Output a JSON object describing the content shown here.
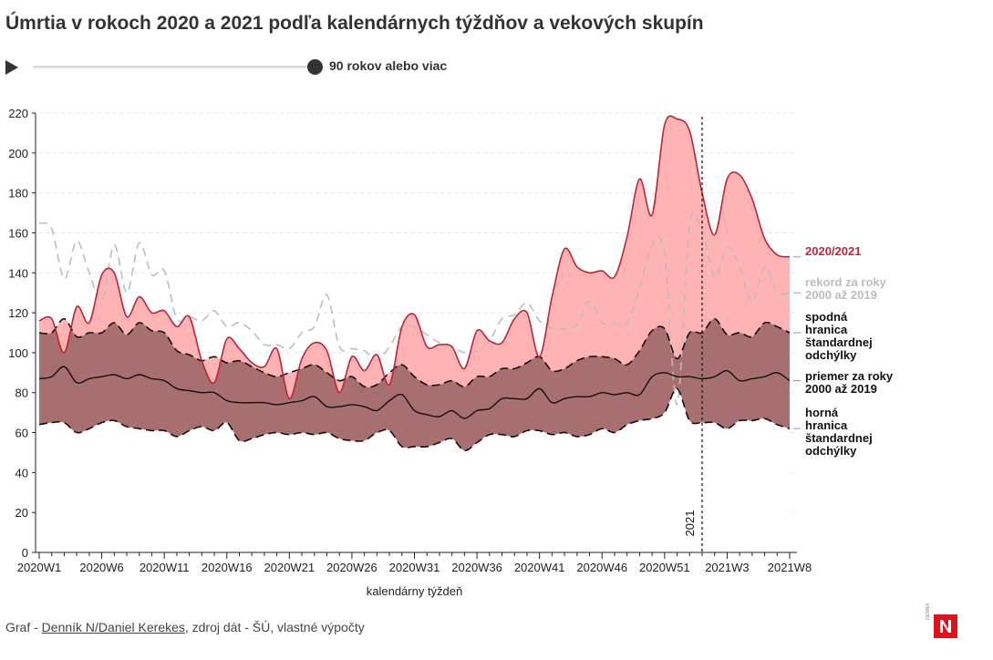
{
  "title": "Úmrtia v rokoch 2020 a 2021 podľa kalendárnych týždňov a vekových skupín",
  "slider": {
    "label": "90 rokov alebo viac"
  },
  "footer": {
    "prefix": "Graf - ",
    "link": "Denník N/Daniel Kerekes",
    "suffix": ", zdroj dát - ŠÚ, vlastné výpočty"
  },
  "logo": {
    "tag": "DENNÍK",
    "letter": "N"
  },
  "colors": {
    "current_line": "#c0233a",
    "current_fill": "#ffb3b3",
    "overlap_fill": "#a76f6f",
    "band_fill": "#b5b5b5",
    "record_line": "#bdbdbd",
    "bound_line": "#111111",
    "mean_line": "#111111"
  },
  "chart_data": {
    "type": "area",
    "title": "Úmrtia v rokoch 2020 a 2021 podľa kalendárnych týždňov a vekových skupín",
    "xlabel": "kalendárny týždeň",
    "ylabel": "",
    "ylim": [
      0,
      220
    ],
    "yticks": [
      0,
      20,
      40,
      60,
      80,
      100,
      120,
      140,
      160,
      180,
      200,
      220
    ],
    "grid": true,
    "x_tick_labels": [
      "2020W1",
      "2020W6",
      "2020W11",
      "2020W16",
      "2020W21",
      "2020W26",
      "2020W31",
      "2020W36",
      "2020W41",
      "2020W46",
      "2020W51",
      "2021W3",
      "2021W8"
    ],
    "x_tick_every": 5,
    "marker": {
      "label": "2021",
      "index": 53
    },
    "weeks": [
      "2020W1",
      "2020W2",
      "2020W3",
      "2020W4",
      "2020W5",
      "2020W6",
      "2020W7",
      "2020W8",
      "2020W9",
      "2020W10",
      "2020W11",
      "2020W12",
      "2020W13",
      "2020W14",
      "2020W15",
      "2020W16",
      "2020W17",
      "2020W18",
      "2020W19",
      "2020W20",
      "2020W21",
      "2020W22",
      "2020W23",
      "2020W24",
      "2020W25",
      "2020W26",
      "2020W27",
      "2020W28",
      "2020W29",
      "2020W30",
      "2020W31",
      "2020W32",
      "2020W33",
      "2020W34",
      "2020W35",
      "2020W36",
      "2020W37",
      "2020W38",
      "2020W39",
      "2020W40",
      "2020W41",
      "2020W42",
      "2020W43",
      "2020W44",
      "2020W45",
      "2020W46",
      "2020W47",
      "2020W48",
      "2020W49",
      "2020W50",
      "2020W51",
      "2020W52",
      "2020W53",
      "2021W1",
      "2021W2",
      "2021W3",
      "2021W4",
      "2021W5",
      "2021W6",
      "2021W7",
      "2021W8"
    ],
    "series": [
      {
        "name": "2020/2021",
        "key": "current",
        "values": [
          116,
          117,
          100,
          123,
          115,
          139,
          140,
          118,
          128,
          120,
          121,
          113,
          118,
          96,
          85,
          107,
          102,
          95,
          93,
          102,
          77,
          97,
          105,
          101,
          80,
          98,
          91,
          99,
          84,
          113,
          119,
          103,
          104,
          103,
          92,
          111,
          106,
          105,
          117,
          120,
          98,
          128,
          152,
          143,
          140,
          141,
          138,
          158,
          187,
          169,
          214,
          217,
          211,
          180,
          159,
          187,
          189,
          177,
          157,
          149,
          148
        ]
      },
      {
        "name": "rekord za roky 2000 až 2019",
        "key": "record",
        "values": [
          165,
          162,
          137,
          156,
          140,
          126,
          154,
          130,
          155,
          139,
          141,
          117,
          118,
          116,
          121,
          113,
          115,
          111,
          104,
          104,
          102,
          110,
          113,
          129,
          103,
          102,
          101,
          96,
          103,
          113,
          113,
          109,
          105,
          103,
          100,
          101,
          106,
          117,
          119,
          125,
          116,
          112,
          112,
          114,
          126,
          115,
          115,
          115,
          132,
          154,
          150,
          74,
          164,
          161,
          138,
          153,
          143,
          125,
          143,
          130,
          130
        ]
      },
      {
        "name": "spodná hranica štandardnej odchýlky",
        "key": "upper",
        "values": [
          110,
          110,
          117,
          108,
          110,
          110,
          115,
          109,
          115,
          111,
          110,
          101,
          99,
          96,
          98,
          95,
          96,
          93,
          90,
          88,
          90,
          92,
          94,
          90,
          86,
          88,
          83,
          84,
          90,
          94,
          88,
          84,
          84,
          86,
          83,
          88,
          88,
          92,
          92,
          95,
          98,
          91,
          92,
          96,
          98,
          98,
          97,
          94,
          101,
          111,
          112,
          97,
          110,
          110,
          117,
          109,
          110,
          108,
          115,
          113,
          110
        ]
      },
      {
        "name": "priemer za roky 2000 až 2019",
        "key": "mean",
        "values": [
          87,
          88,
          93,
          85,
          87,
          88,
          89,
          87,
          89,
          87,
          86,
          82,
          81,
          80,
          80,
          76,
          75,
          75,
          75,
          74,
          75,
          76,
          78,
          73,
          73,
          74,
          73,
          71,
          76,
          79,
          71,
          69,
          68,
          71,
          67,
          71,
          72,
          77,
          77,
          77,
          82,
          75,
          77,
          78,
          78,
          80,
          79,
          80,
          79,
          88,
          90,
          88,
          88,
          87,
          88,
          91,
          86,
          87,
          88,
          90,
          86
        ]
      },
      {
        "name": "horná hranica štandardnej odchýlky",
        "key": "lower",
        "values": [
          64,
          65,
          65,
          60,
          62,
          65,
          66,
          63,
          62,
          61,
          61,
          58,
          61,
          63,
          61,
          65,
          56,
          57,
          59,
          60,
          59,
          60,
          59,
          60,
          57,
          56,
          56,
          60,
          61,
          53,
          53,
          53,
          55,
          57,
          51,
          55,
          59,
          59,
          58,
          61,
          61,
          59,
          60,
          58,
          59,
          62,
          60,
          64,
          66,
          67,
          70,
          82,
          66,
          65,
          65,
          62,
          66,
          66,
          67,
          64,
          62
        ]
      }
    ],
    "legend": [
      {
        "label": "2020/2021",
        "key": "current"
      },
      {
        "label": "rekord za roky 2000 až 2019",
        "key": "record"
      },
      {
        "label": "spodná hranica štandardnej odchýlky",
        "key": "upper"
      },
      {
        "label": "priemer za roky 2000 až 2019",
        "key": "mean"
      },
      {
        "label": "horná hranica štandardnej odchýlky",
        "key": "lower"
      }
    ]
  }
}
